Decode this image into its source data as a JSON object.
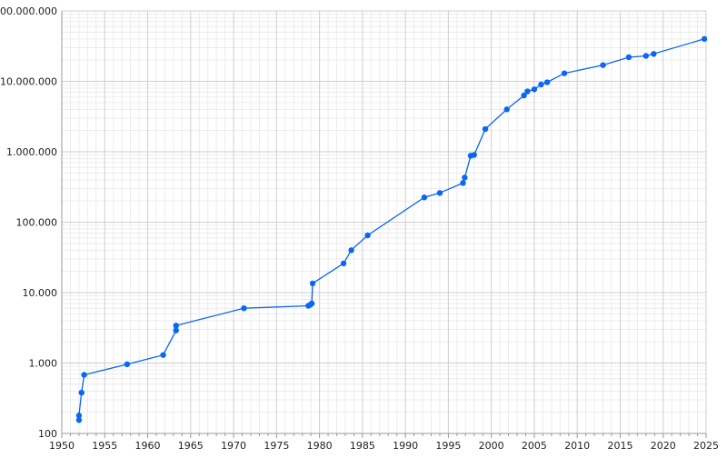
{
  "colors": {
    "series": "#0a66f5",
    "grid_major": "#cfcfcf",
    "grid_minor": "#ececec",
    "axis": "#999999"
  },
  "chart_data": {
    "type": "line",
    "title": "",
    "xlabel": "",
    "ylabel": "",
    "xlim": [
      1950,
      2025
    ],
    "ylim": [
      100,
      100000000
    ],
    "y_scale": "log",
    "grid": true,
    "markers": true,
    "x_ticks": [
      1950,
      1955,
      1960,
      1965,
      1970,
      1975,
      1980,
      1985,
      1990,
      1995,
      2000,
      2005,
      2010,
      2015,
      2020,
      2025
    ],
    "x_tick_labels": [
      "1950",
      "1955",
      "1960",
      "1965",
      "1970",
      "1975",
      "1980",
      "1985",
      "1990",
      "1995",
      "2000",
      "2005",
      "2010",
      "2015",
      "2020",
      "2025"
    ],
    "y_ticks": [
      100,
      1000,
      10000,
      100000,
      1000000,
      10000000,
      100000000
    ],
    "y_tick_labels": [
      "100",
      "1.000",
      "10.000",
      "100.000",
      "1.000.000",
      "10.000.000",
      "100.000.000"
    ],
    "series": [
      {
        "x": [
          1952.0,
          1952.0,
          1952.3,
          1952.6,
          1957.6,
          1961.8,
          1963.3,
          1963.3,
          1971.2,
          1978.7,
          1978.9,
          1979.1,
          1979.2,
          1982.8,
          1983.7,
          1985.6,
          1992.2,
          1994.0,
          1996.7,
          1996.9,
          1997.6,
          1998.0,
          1999.3,
          2001.8,
          2003.8,
          2004.2,
          2005.0,
          2005.8,
          2006.5,
          2008.5,
          2013.0,
          2016.0,
          2018.0,
          2018.9,
          2024.8
        ],
        "y": [
          155,
          180,
          380,
          680,
          960,
          1300,
          2900,
          3400,
          6000,
          6500,
          6700,
          7000,
          13500,
          26000,
          40000,
          65000,
          225000,
          260000,
          360000,
          430000,
          880000,
          900000,
          2100000,
          4000000,
          6300000,
          7200000,
          7700000,
          9000000,
          9700000,
          13000000,
          17000000,
          22000000,
          23000000,
          24500000,
          40000000
        ]
      }
    ]
  }
}
